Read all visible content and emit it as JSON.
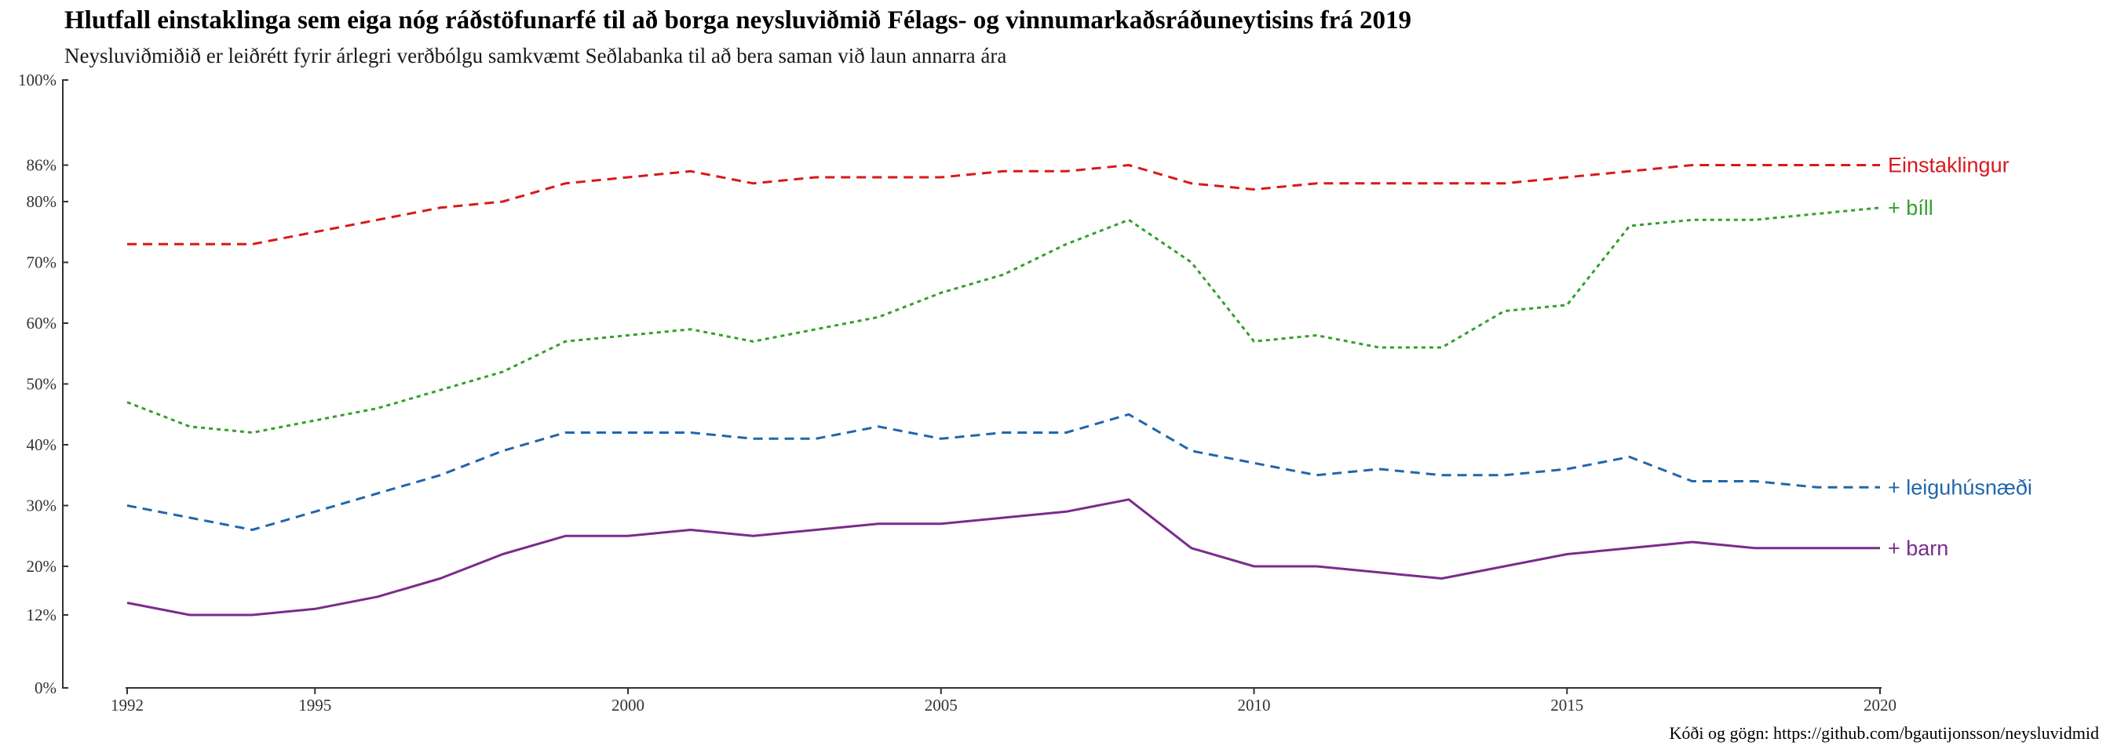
{
  "chart_data": {
    "type": "line",
    "title": "Hlutfall einstaklinga sem eiga nóg ráðstöfunarfé til að borga neysluviðmið Félags- og vinnumarkaðsráðuneytisins frá 2019",
    "subtitle": "Neysluviðmiðið er leiðrétt fyrir árlegri verðbólgu samkvæmt Seðlabanka til að bera saman við laun annarra ára",
    "caption": "Kóði og gögn: https://github.com/bgautijonsson/neysluvidmid",
    "xlabel": "",
    "ylabel": "",
    "xlim": [
      1992,
      2020
    ],
    "ylim": [
      0,
      100
    ],
    "x_ticks": [
      1992,
      1995,
      2000,
      2005,
      2010,
      2015,
      2020
    ],
    "y_ticks": [
      0,
      12,
      20,
      30,
      40,
      50,
      60,
      70,
      80,
      86,
      100
    ],
    "y_tick_labels": [
      "0%",
      "12%",
      "20%",
      "30%",
      "40%",
      "50%",
      "60%",
      "70%",
      "80%",
      "86%",
      "100%"
    ],
    "grid": false,
    "legend": "direct labels at right end of lines",
    "x": [
      1992,
      1993,
      1994,
      1995,
      1996,
      1997,
      1998,
      1999,
      2000,
      2001,
      2002,
      2003,
      2004,
      2005,
      2006,
      2007,
      2008,
      2009,
      2010,
      2011,
      2012,
      2013,
      2014,
      2015,
      2016,
      2017,
      2018,
      2019,
      2020
    ],
    "series": [
      {
        "name": "Einstaklingur",
        "color": "#d7191c",
        "dash": "dashed",
        "values": [
          73,
          73,
          73,
          75,
          77,
          79,
          80,
          83,
          84,
          85,
          83,
          84,
          84,
          84,
          85,
          85,
          86,
          83,
          82,
          83,
          83,
          83,
          83,
          84,
          85,
          86,
          86,
          86,
          86
        ]
      },
      {
        "name": "+ bíll",
        "color": "#33a02c",
        "dash": "dotted",
        "values": [
          47,
          43,
          42,
          44,
          46,
          49,
          52,
          57,
          58,
          59,
          57,
          59,
          61,
          65,
          68,
          73,
          77,
          70,
          57,
          58,
          56,
          56,
          62,
          63,
          76,
          77,
          77,
          78,
          79
        ]
      },
      {
        "name": "+ leiguhúsnæði",
        "color": "#2166ac",
        "dash": "dashed",
        "values": [
          30,
          28,
          26,
          29,
          32,
          35,
          39,
          42,
          42,
          42,
          41,
          41,
          43,
          41,
          42,
          42,
          45,
          39,
          37,
          35,
          36,
          35,
          35,
          36,
          38,
          34,
          34,
          33,
          33
        ]
      },
      {
        "name": "+ barn",
        "color": "#7b2c8b",
        "dash": "solid",
        "values": [
          14,
          12,
          12,
          13,
          15,
          18,
          22,
          25,
          25,
          26,
          25,
          26,
          27,
          27,
          28,
          29,
          31,
          23,
          20,
          20,
          19,
          18,
          20,
          22,
          23,
          24,
          23,
          23,
          23
        ]
      }
    ]
  }
}
